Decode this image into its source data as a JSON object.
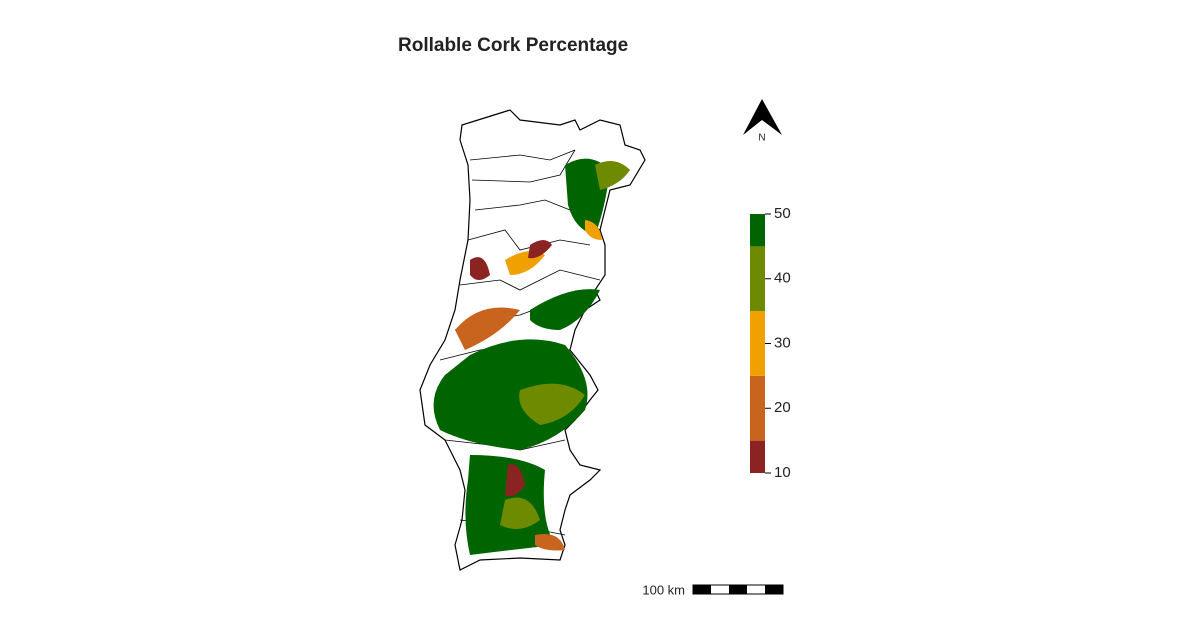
{
  "title": "Rollable Cork Percentage",
  "legend": {
    "min": 10,
    "max": 50,
    "ticks": [
      10,
      20,
      30,
      40,
      50
    ],
    "breaks": [
      10,
      15,
      25,
      35,
      45,
      50
    ],
    "colors": [
      "#8b2323",
      "#c8641e",
      "#f0a000",
      "#6e8a00",
      "#006400"
    ]
  },
  "north_label": "N",
  "scale_bar": {
    "label": "100 km"
  }
}
